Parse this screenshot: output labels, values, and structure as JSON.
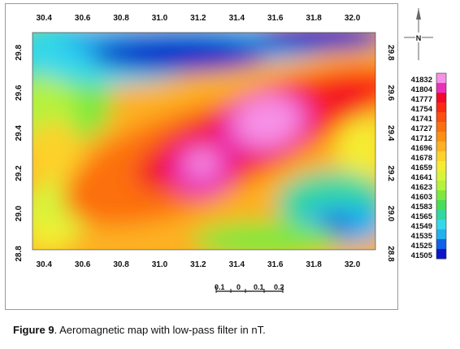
{
  "map": {
    "type": "contour",
    "x_ticks": [
      "30.4",
      "30.6",
      "30.8",
      "31.0",
      "31.2",
      "31.4",
      "31.6",
      "31.8",
      "32.0"
    ],
    "y_ticks": [
      "28.8",
      "29.0",
      "29.2",
      "29.4",
      "29.6",
      "29.8"
    ],
    "x_range": [
      30.34,
      32.12
    ],
    "y_range": [
      28.82,
      29.9
    ],
    "colorbar": {
      "values": [
        "41832",
        "41804",
        "41777",
        "41754",
        "41741",
        "41727",
        "41712",
        "41696",
        "41678",
        "41659",
        "41641",
        "41623",
        "41603",
        "41583",
        "41565",
        "41549",
        "41535",
        "41525",
        "41505"
      ],
      "colors": [
        "#f791e6",
        "#ea2fb8",
        "#f2082a",
        "#fa2a10",
        "#fb4e10",
        "#fc6f10",
        "#fd9010",
        "#fdb120",
        "#fcd22b",
        "#f5ec30",
        "#d7f53a",
        "#b4f23c",
        "#7ee83e",
        "#4adc58",
        "#30d7a0",
        "#34d8ea",
        "#22b0ee",
        "#0d62e6",
        "#0a14c8"
      ]
    },
    "north_arrow": {
      "label": "N"
    },
    "scale_bar": {
      "labels": [
        "0.1",
        "0",
        "0.1",
        "0.2"
      ]
    },
    "anomalies": [
      {
        "x": 31.56,
        "y": 29.45,
        "value": 41832
      },
      {
        "x": 31.22,
        "y": 29.24,
        "value": 41832
      },
      {
        "x": 31.95,
        "y": 29.55,
        "value": 41777
      },
      {
        "x": 31.05,
        "y": 29.79,
        "value": 41505
      },
      {
        "x": 31.92,
        "y": 28.94,
        "value": 41505
      }
    ]
  },
  "caption": {
    "label": "Figure 9",
    "text": ". Aeromagnetic map with low-pass filter in nT."
  }
}
